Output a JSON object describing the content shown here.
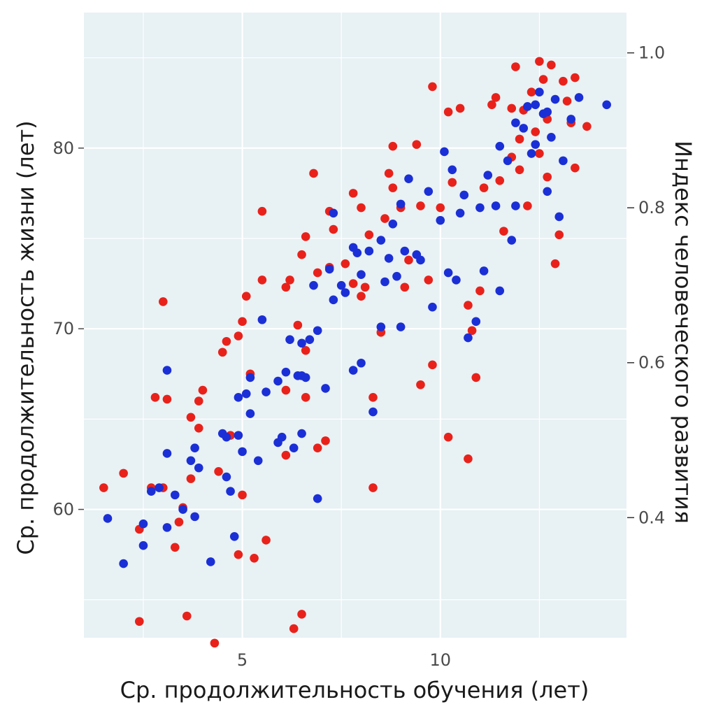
{
  "chart_data": {
    "type": "scatter",
    "xlabel": "Ср. продолжительность обучения (лет)",
    "ylabel": "Ср. продолжительность жизни (лет)",
    "y2label": "Индекс человеческого развития",
    "xlim": [
      1.0,
      14.7
    ],
    "ylim": [
      52.9,
      87.5
    ],
    "y2lim": [
      0.245,
      1.052
    ],
    "x_ticks": [
      5,
      10
    ],
    "y_ticks": [
      60,
      70,
      80
    ],
    "y2_ticks": [
      0.4,
      0.6,
      0.8,
      1.0
    ],
    "x_tick_labels": [
      "5",
      "10"
    ],
    "y_tick_labels": [
      "60",
      "70",
      "80"
    ],
    "y2_tick_labels": [
      "0.4",
      "0.6",
      "0.8",
      "1.0"
    ],
    "grid": true,
    "legend": "none",
    "colors": {
      "background": "#e8f1f4",
      "grid": "#ffffff",
      "series_red": "#e8221b",
      "series_blue": "#1b2fd6"
    },
    "series": [
      {
        "color": "#e8221b",
        "points": [
          [
            1.5,
            61.2
          ],
          [
            2.0,
            62.0
          ],
          [
            2.4,
            53.8
          ],
          [
            2.4,
            58.9
          ],
          [
            2.7,
            61.2
          ],
          [
            2.8,
            66.2
          ],
          [
            3.0,
            71.5
          ],
          [
            3.0,
            61.2
          ],
          [
            3.1,
            66.1
          ],
          [
            3.3,
            57.9
          ],
          [
            3.5,
            60.1
          ],
          [
            3.6,
            54.1
          ],
          [
            3.7,
            61.7
          ],
          [
            3.7,
            65.1
          ],
          [
            3.9,
            64.5
          ],
          [
            3.9,
            66.0
          ],
          [
            4.0,
            66.6
          ],
          [
            4.3,
            52.6
          ],
          [
            4.5,
            68.7
          ],
          [
            4.6,
            69.3
          ],
          [
            4.7,
            64.1
          ],
          [
            4.9,
            69.6
          ],
          [
            5.0,
            70.4
          ],
          [
            5.0,
            60.8
          ],
          [
            4.9,
            57.5
          ],
          [
            5.1,
            71.8
          ],
          [
            5.2,
            67.5
          ],
          [
            5.3,
            57.3
          ],
          [
            5.5,
            72.7
          ],
          [
            5.5,
            76.5
          ],
          [
            5.6,
            58.3
          ],
          [
            6.1,
            66.6
          ],
          [
            6.1,
            63.0
          ],
          [
            6.1,
            72.3
          ],
          [
            6.2,
            72.7
          ],
          [
            6.3,
            53.4
          ],
          [
            6.4,
            70.2
          ],
          [
            6.5,
            54.2
          ],
          [
            6.5,
            74.1
          ],
          [
            6.6,
            75.1
          ],
          [
            6.6,
            66.2
          ],
          [
            6.8,
            78.6
          ],
          [
            6.9,
            73.1
          ],
          [
            6.9,
            63.4
          ],
          [
            7.1,
            63.8
          ],
          [
            7.2,
            76.5
          ],
          [
            7.2,
            73.4
          ],
          [
            7.3,
            75.5
          ],
          [
            7.6,
            73.6
          ],
          [
            7.8,
            72.5
          ],
          [
            7.8,
            77.5
          ],
          [
            8.0,
            76.7
          ],
          [
            8.0,
            71.8
          ],
          [
            8.1,
            72.3
          ],
          [
            8.2,
            75.2
          ],
          [
            8.3,
            61.2
          ],
          [
            8.3,
            66.2
          ],
          [
            8.5,
            69.8
          ],
          [
            8.6,
            76.1
          ],
          [
            8.7,
            78.6
          ],
          [
            8.8,
            80.1
          ],
          [
            8.8,
            77.8
          ],
          [
            9.0,
            76.7
          ],
          [
            9.1,
            72.3
          ],
          [
            9.2,
            73.8
          ],
          [
            9.4,
            80.2
          ],
          [
            9.5,
            76.8
          ],
          [
            9.7,
            72.7
          ],
          [
            9.8,
            68.0
          ],
          [
            9.8,
            83.4
          ],
          [
            10.0,
            76.7
          ],
          [
            10.2,
            64.0
          ],
          [
            10.2,
            82.0
          ],
          [
            10.3,
            78.1
          ],
          [
            10.5,
            82.2
          ],
          [
            10.7,
            71.3
          ],
          [
            10.8,
            69.9
          ],
          [
            10.9,
            67.3
          ],
          [
            11.0,
            72.1
          ],
          [
            11.1,
            77.8
          ],
          [
            11.3,
            82.4
          ],
          [
            11.4,
            82.8
          ],
          [
            11.5,
            78.2
          ],
          [
            11.6,
            75.4
          ],
          [
            11.8,
            79.5
          ],
          [
            11.8,
            82.2
          ],
          [
            11.9,
            84.5
          ],
          [
            12.0,
            78.8
          ],
          [
            12.0,
            80.5
          ],
          [
            12.1,
            82.1
          ],
          [
            12.2,
            76.8
          ],
          [
            12.3,
            83.1
          ],
          [
            12.4,
            80.9
          ],
          [
            12.5,
            79.7
          ],
          [
            12.5,
            84.8
          ],
          [
            12.6,
            83.8
          ],
          [
            12.7,
            81.6
          ],
          [
            12.7,
            78.4
          ],
          [
            12.8,
            84.6
          ],
          [
            12.9,
            73.6
          ],
          [
            13.0,
            75.2
          ],
          [
            13.1,
            83.7
          ],
          [
            13.2,
            82.6
          ],
          [
            13.3,
            81.4
          ],
          [
            13.4,
            78.9
          ],
          [
            13.4,
            83.9
          ],
          [
            13.7,
            81.2
          ],
          [
            6.6,
            68.8
          ],
          [
            4.4,
            62.1
          ],
          [
            3.4,
            59.3
          ],
          [
            9.5,
            66.9
          ],
          [
            10.7,
            62.8
          ]
        ]
      },
      {
        "color": "#1b2fd6",
        "points": [
          [
            1.6,
            59.5
          ],
          [
            2.0,
            57.0
          ],
          [
            2.5,
            58.0
          ],
          [
            2.5,
            59.2
          ],
          [
            2.7,
            61.0
          ],
          [
            2.9,
            61.2
          ],
          [
            3.1,
            67.7
          ],
          [
            3.1,
            63.1
          ],
          [
            3.1,
            59.0
          ],
          [
            3.3,
            60.8
          ],
          [
            3.5,
            60.0
          ],
          [
            3.7,
            62.7
          ],
          [
            3.8,
            59.6
          ],
          [
            3.8,
            63.4
          ],
          [
            3.9,
            62.3
          ],
          [
            4.2,
            57.1
          ],
          [
            4.5,
            64.2
          ],
          [
            4.6,
            61.8
          ],
          [
            4.6,
            64.0
          ],
          [
            4.7,
            61.0
          ],
          [
            4.8,
            58.5
          ],
          [
            4.9,
            66.2
          ],
          [
            4.9,
            64.1
          ],
          [
            5.0,
            63.2
          ],
          [
            5.1,
            66.4
          ],
          [
            5.2,
            67.3
          ],
          [
            5.2,
            65.3
          ],
          [
            5.4,
            62.7
          ],
          [
            5.5,
            70.5
          ],
          [
            5.6,
            66.5
          ],
          [
            5.9,
            63.7
          ],
          [
            6.0,
            64.0
          ],
          [
            6.1,
            67.6
          ],
          [
            6.2,
            69.4
          ],
          [
            6.3,
            63.4
          ],
          [
            6.4,
            67.4
          ],
          [
            6.5,
            64.2
          ],
          [
            6.5,
            69.2
          ],
          [
            6.5,
            67.4
          ],
          [
            6.6,
            67.3
          ],
          [
            6.7,
            69.4
          ],
          [
            6.8,
            72.4
          ],
          [
            6.9,
            69.9
          ],
          [
            6.9,
            60.6
          ],
          [
            7.1,
            66.7
          ],
          [
            7.2,
            73.3
          ],
          [
            7.3,
            71.6
          ],
          [
            7.3,
            76.4
          ],
          [
            7.6,
            72.0
          ],
          [
            7.8,
            74.5
          ],
          [
            7.8,
            67.7
          ],
          [
            7.9,
            74.2
          ],
          [
            8.0,
            68.1
          ],
          [
            8.0,
            73.0
          ],
          [
            8.2,
            74.3
          ],
          [
            8.3,
            65.4
          ],
          [
            8.5,
            70.1
          ],
          [
            8.5,
            74.9
          ],
          [
            8.6,
            72.6
          ],
          [
            8.7,
            73.9
          ],
          [
            8.8,
            75.8
          ],
          [
            8.9,
            72.9
          ],
          [
            9.0,
            70.1
          ],
          [
            9.1,
            74.3
          ],
          [
            9.2,
            78.3
          ],
          [
            9.4,
            74.1
          ],
          [
            9.5,
            73.8
          ],
          [
            9.7,
            77.6
          ],
          [
            9.8,
            71.2
          ],
          [
            10.0,
            76.0
          ],
          [
            10.1,
            79.8
          ],
          [
            10.2,
            73.1
          ],
          [
            10.3,
            78.8
          ],
          [
            10.4,
            72.7
          ],
          [
            10.5,
            76.4
          ],
          [
            10.6,
            77.4
          ],
          [
            10.7,
            69.5
          ],
          [
            10.9,
            70.4
          ],
          [
            11.0,
            76.7
          ],
          [
            11.1,
            73.2
          ],
          [
            11.2,
            78.5
          ],
          [
            11.4,
            76.8
          ],
          [
            11.5,
            72.1
          ],
          [
            11.5,
            80.1
          ],
          [
            11.7,
            79.3
          ],
          [
            11.8,
            74.9
          ],
          [
            11.9,
            76.8
          ],
          [
            12.1,
            81.1
          ],
          [
            12.2,
            82.3
          ],
          [
            12.3,
            79.7
          ],
          [
            12.4,
            82.4
          ],
          [
            12.5,
            83.1
          ],
          [
            12.6,
            81.9
          ],
          [
            12.7,
            77.6
          ],
          [
            12.8,
            80.6
          ],
          [
            12.9,
            82.7
          ],
          [
            13.0,
            76.2
          ],
          [
            13.1,
            79.3
          ],
          [
            13.3,
            81.6
          ],
          [
            13.5,
            82.8
          ],
          [
            14.2,
            82.4
          ],
          [
            12.4,
            80.2
          ],
          [
            11.9,
            81.4
          ],
          [
            12.7,
            82.0
          ],
          [
            9.0,
            76.9
          ],
          [
            7.5,
            72.4
          ],
          [
            5.9,
            67.1
          ]
        ]
      }
    ]
  }
}
